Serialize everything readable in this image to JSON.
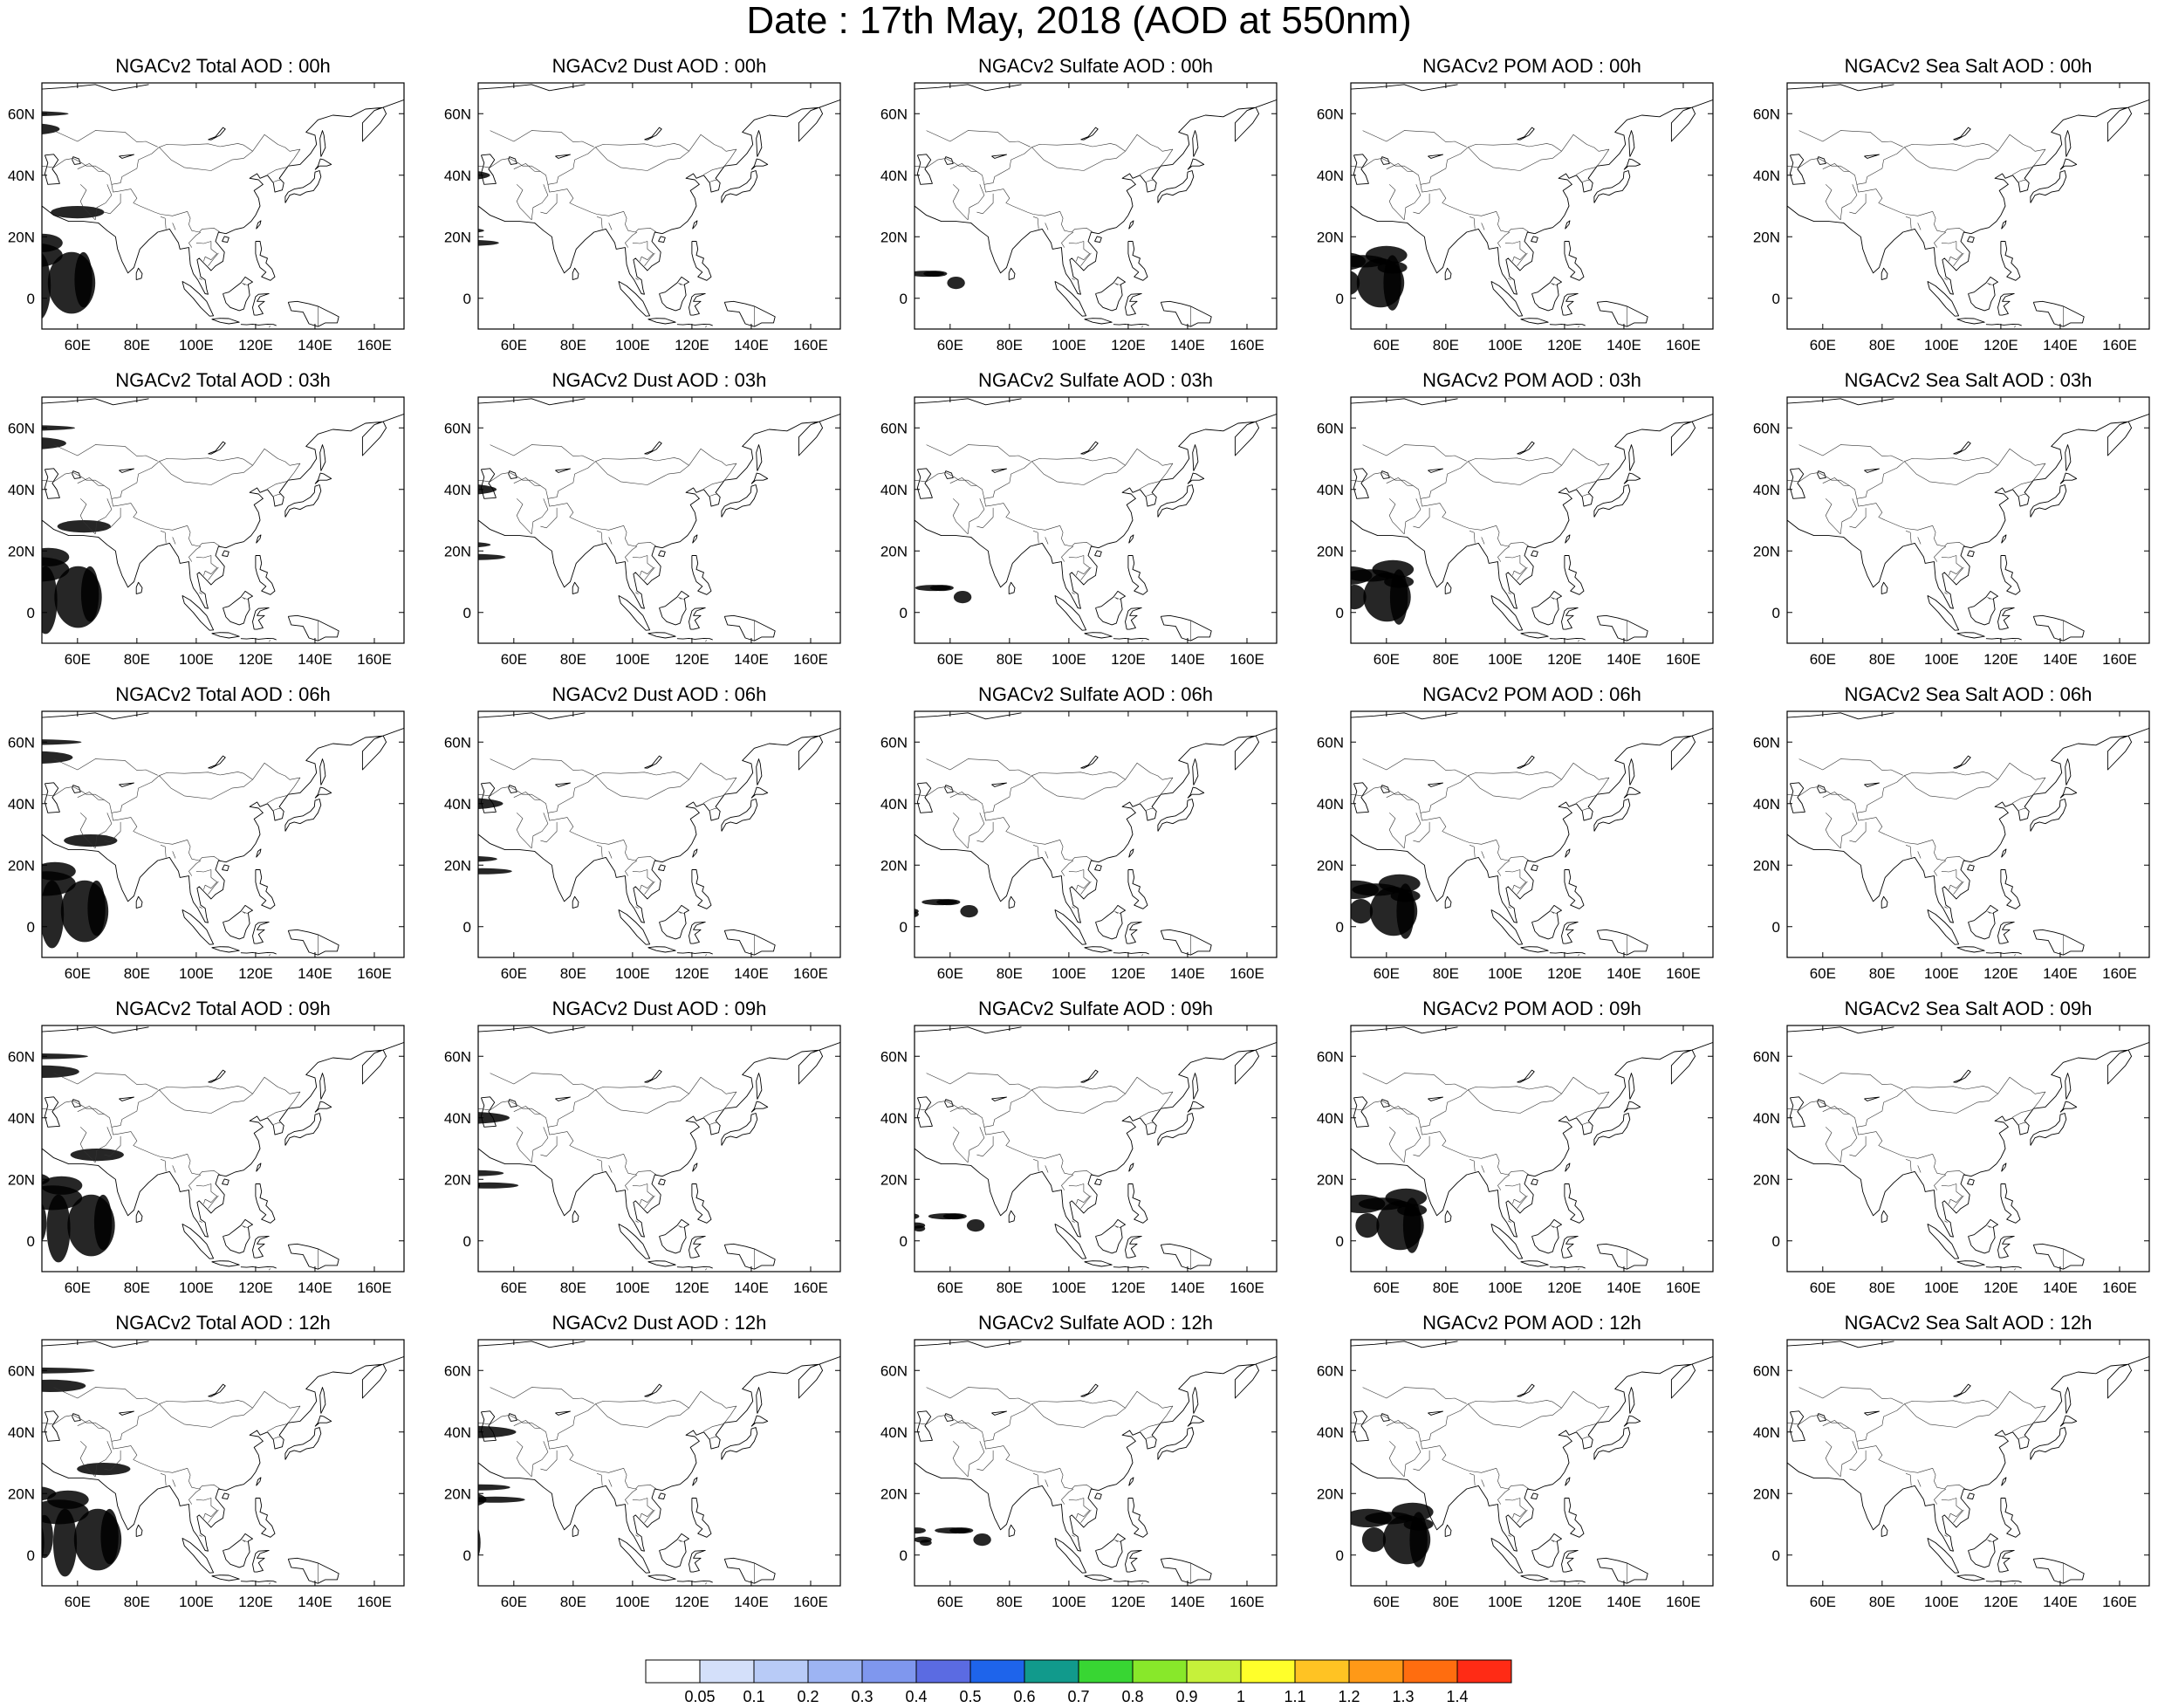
{
  "title": "Date : 17th May, 2018 (AOD at 550nm)",
  "panels": [
    [
      "NGACv2 Total AOD : 00h",
      "NGACv2 Dust AOD : 00h",
      "NGACv2 Sulfate AOD : 00h",
      "NGACv2 POM AOD : 00h",
      "NGACv2 Sea Salt AOD : 00h"
    ],
    [
      "NGACv2 Total AOD : 03h",
      "NGACv2 Dust AOD : 03h",
      "NGACv2 Sulfate AOD : 03h",
      "NGACv2 POM AOD : 03h",
      "NGACv2 Sea Salt AOD : 03h"
    ],
    [
      "NGACv2 Total AOD : 06h",
      "NGACv2 Dust AOD : 06h",
      "NGACv2 Sulfate AOD : 06h",
      "NGACv2 POM AOD : 06h",
      "NGACv2 Sea Salt AOD : 06h"
    ],
    [
      "NGACv2 Total AOD : 09h",
      "NGACv2 Dust AOD : 09h",
      "NGACv2 Sulfate AOD : 09h",
      "NGACv2 POM AOD : 09h",
      "NGACv2 Sea Salt  AOD : 09h"
    ],
    [
      "NGACv2 Total AOD  : 12h",
      "NGACv2 Dust AOD : 12h",
      "NGACv2 Sulfate AOD : 12h",
      "NGACv2 POM  AOD : 12h",
      "NGACv2 Sea Salt  AOD : 12h"
    ]
  ],
  "lon_ticks": [
    "60E",
    "80E",
    "100E",
    "120E",
    "140E",
    "160E"
  ],
  "lon_values": [
    60,
    80,
    100,
    120,
    140,
    160
  ],
  "lat_ticks": [
    "60N",
    "40N",
    "20N",
    "0"
  ],
  "lat_values": [
    60,
    40,
    20,
    0
  ],
  "lon_range": [
    48,
    170
  ],
  "lat_range": [
    -10,
    70
  ],
  "colorbar": {
    "labels": [
      "0.05",
      "0.1",
      "0.2",
      "0.3",
      "0.4",
      "0.5",
      "0.6",
      "0.7",
      "0.8",
      "0.9",
      "1",
      "1.1",
      "1.2",
      "1.3",
      "1.4"
    ],
    "colors": [
      "#ffffff",
      "#d4e0fa",
      "#b8cbf7",
      "#9db4f3",
      "#7f97ee",
      "#5b6be2",
      "#1e64eb",
      "#119a8c",
      "#38d633",
      "#88e82a",
      "#c6f13a",
      "#ffff2a",
      "#ffc323",
      "#ff9917",
      "#ff6d0f",
      "#ff2b15"
    ]
  }
}
